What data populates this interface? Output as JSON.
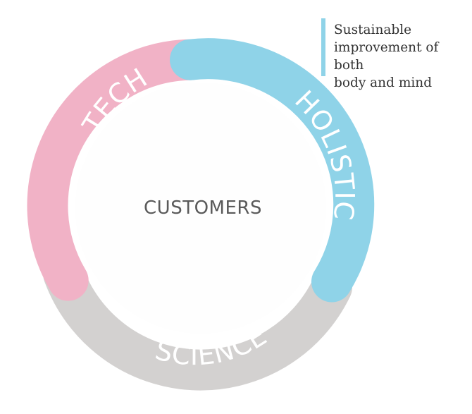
{
  "diagram": {
    "center_label": "CUSTOMERS",
    "segments": [
      {
        "id": "tech",
        "label": "TECH",
        "color": "#f1b2c6"
      },
      {
        "id": "holistic",
        "label": "HOLISTIC",
        "color": "#8fd3e8"
      },
      {
        "id": "science",
        "label": "SCIENCE",
        "color": "#d3d1d0"
      }
    ]
  },
  "callout": {
    "lines": [
      "Sustainable",
      "improvement of both",
      "body and mind"
    ],
    "accent_color": "#8fd3e8"
  }
}
